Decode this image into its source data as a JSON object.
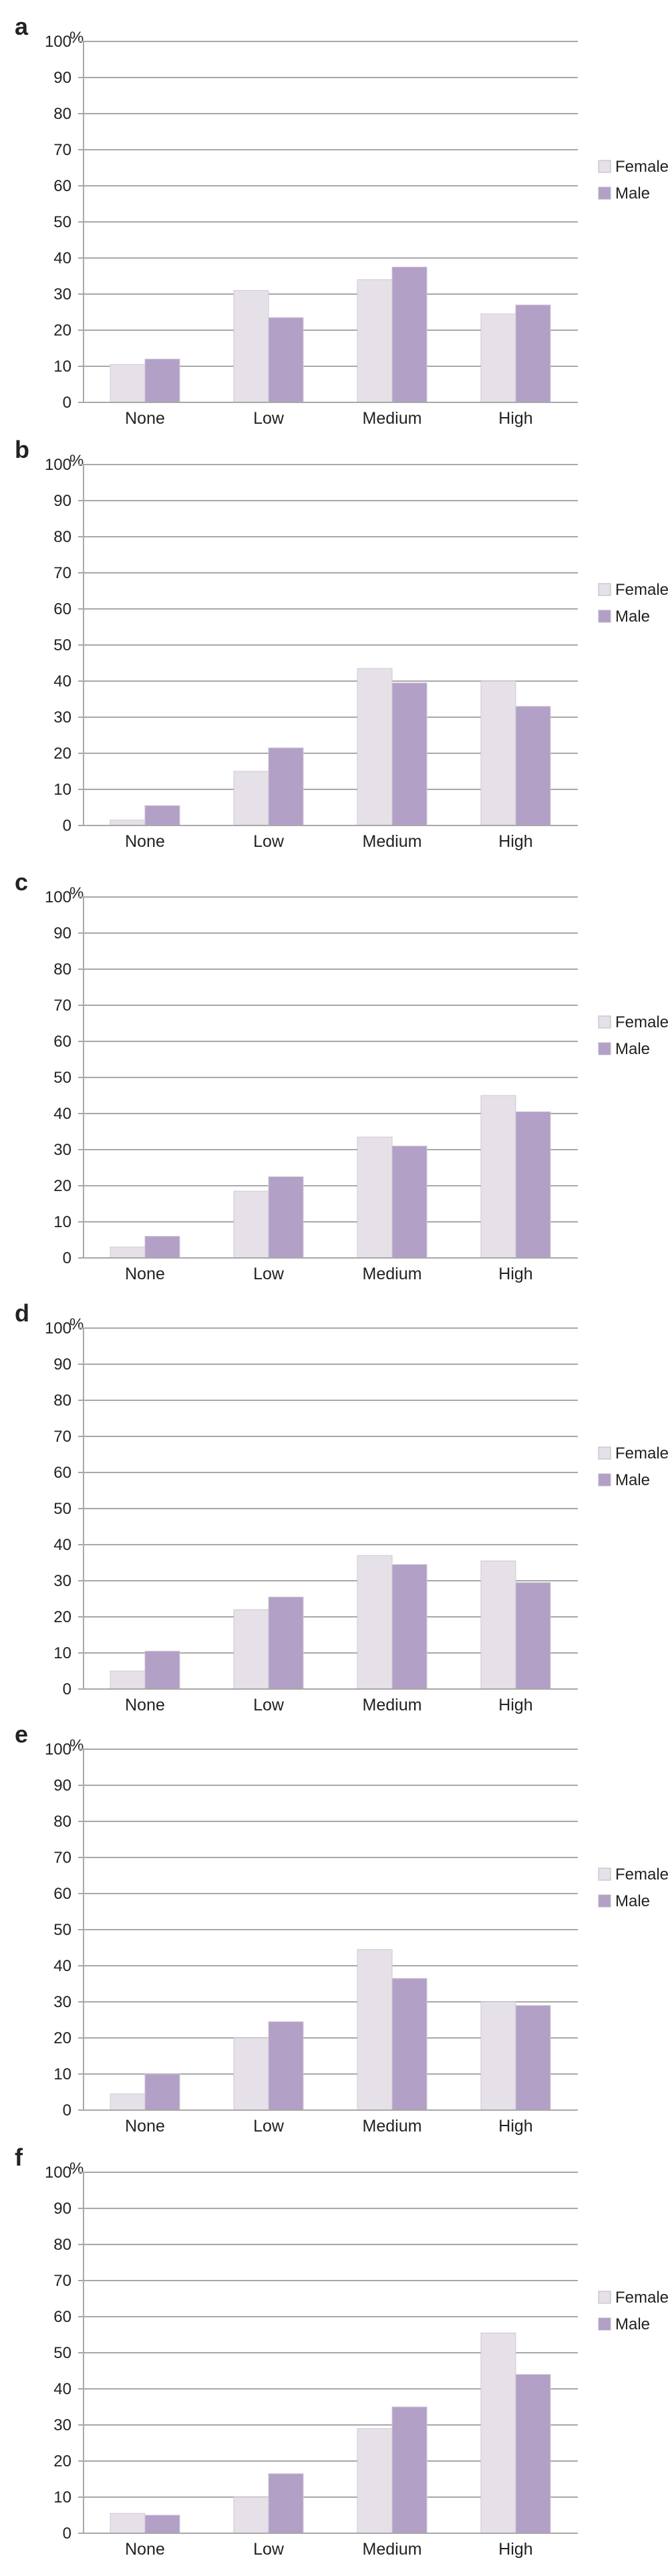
{
  "colors": {
    "Female": "#e6e0e8",
    "Male": "#b2a0c6",
    "grid": "#a8a8a8",
    "text": "#222222"
  },
  "chart_data": [
    {
      "panel": "a",
      "type": "bar",
      "ylabel": "%",
      "ylim": [
        0,
        100
      ],
      "yticks": [
        0,
        10,
        20,
        30,
        40,
        50,
        60,
        70,
        80,
        90,
        100
      ],
      "categories": [
        "None",
        "Low",
        "Medium",
        "High"
      ],
      "series": [
        {
          "name": "Female",
          "values": [
            10.5,
            31,
            34,
            24.5
          ]
        },
        {
          "name": "Male",
          "values": [
            12,
            23.5,
            37.5,
            27
          ]
        }
      ],
      "legend": "right",
      "grid": true
    },
    {
      "panel": "b",
      "type": "bar",
      "ylabel": "%",
      "ylim": [
        0,
        100
      ],
      "yticks": [
        0,
        10,
        20,
        30,
        40,
        50,
        60,
        70,
        80,
        90,
        100
      ],
      "categories": [
        "None",
        "Low",
        "Medium",
        "High"
      ],
      "series": [
        {
          "name": "Female",
          "values": [
            1.5,
            15,
            43.5,
            40
          ]
        },
        {
          "name": "Male",
          "values": [
            5.5,
            21.5,
            39.5,
            33
          ]
        }
      ],
      "legend": "right",
      "grid": true
    },
    {
      "panel": "c",
      "type": "bar",
      "ylabel": "%",
      "ylim": [
        0,
        100
      ],
      "yticks": [
        0,
        10,
        20,
        30,
        40,
        50,
        60,
        70,
        80,
        90,
        100
      ],
      "categories": [
        "None",
        "Low",
        "Medium",
        "High"
      ],
      "series": [
        {
          "name": "Female",
          "values": [
            3,
            18.5,
            33.5,
            45
          ]
        },
        {
          "name": "Male",
          "values": [
            6,
            22.5,
            31,
            40.5
          ]
        }
      ],
      "legend": "right",
      "grid": true
    },
    {
      "panel": "d",
      "type": "bar",
      "ylabel": "%",
      "ylim": [
        0,
        100
      ],
      "yticks": [
        0,
        10,
        20,
        30,
        40,
        50,
        60,
        70,
        80,
        90,
        100
      ],
      "categories": [
        "None",
        "Low",
        "Medium",
        "High"
      ],
      "series": [
        {
          "name": "Female",
          "values": [
            5,
            22,
            37,
            35.5
          ]
        },
        {
          "name": "Male",
          "values": [
            10.5,
            25.5,
            34.5,
            29.5
          ]
        }
      ],
      "legend": "right",
      "grid": true
    },
    {
      "panel": "e",
      "type": "bar",
      "ylabel": "%",
      "ylim": [
        0,
        100
      ],
      "yticks": [
        0,
        10,
        20,
        30,
        40,
        50,
        60,
        70,
        80,
        90,
        100
      ],
      "categories": [
        "None",
        "Low",
        "Medium",
        "High"
      ],
      "series": [
        {
          "name": "Female",
          "values": [
            4.5,
            20,
            44.5,
            30
          ]
        },
        {
          "name": "Male",
          "values": [
            10,
            24.5,
            36.5,
            29
          ]
        }
      ],
      "legend": "right",
      "grid": true
    },
    {
      "panel": "f",
      "type": "bar",
      "ylabel": "%",
      "ylim": [
        0,
        100
      ],
      "yticks": [
        0,
        10,
        20,
        30,
        40,
        50,
        60,
        70,
        80,
        90,
        100
      ],
      "categories": [
        "None",
        "Low",
        "Medium",
        "High"
      ],
      "series": [
        {
          "name": "Female",
          "values": [
            5.5,
            10,
            29,
            55.5
          ]
        },
        {
          "name": "Male",
          "values": [
            5,
            16.5,
            35,
            44
          ]
        }
      ],
      "legend": "right",
      "grid": true
    }
  ]
}
